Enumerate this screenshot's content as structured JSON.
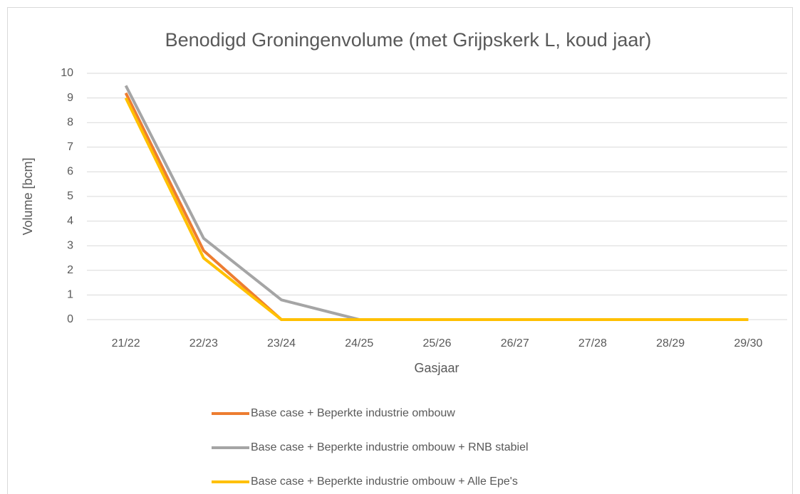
{
  "chart_data": {
    "type": "line",
    "title": "Benodigd Groningenvolume (met Grijpskerk L, koud jaar)",
    "x_label": "Gasjaar",
    "y_label": "Volume [bcm]",
    "categories": [
      "21/22",
      "22/23",
      "23/24",
      "24/25",
      "25/26",
      "26/27",
      "27/28",
      "28/29",
      "29/30"
    ],
    "series": [
      {
        "name": "Base case + Beperkte industrie ombouw",
        "color": "#ed7d31",
        "values": [
          9.2,
          2.8,
          0,
          0,
          0,
          0,
          0,
          0,
          0
        ]
      },
      {
        "name": "Base case + Beperkte industrie ombouw + RNB stabiel",
        "color": "#a5a5a5",
        "values": [
          9.5,
          3.3,
          0.8,
          0,
          0,
          0,
          0,
          0,
          0
        ]
      },
      {
        "name": "Base case + Beperkte industrie ombouw + Alle Epe's",
        "color": "#ffc000",
        "values": [
          9.0,
          2.5,
          0,
          0,
          0,
          0,
          0,
          0,
          0
        ]
      }
    ],
    "ylim": [
      0,
      10
    ],
    "yticks": [
      0,
      1,
      2,
      3,
      4,
      5,
      6,
      7,
      8,
      9,
      10
    ],
    "grid": true,
    "legend": "bottom"
  }
}
